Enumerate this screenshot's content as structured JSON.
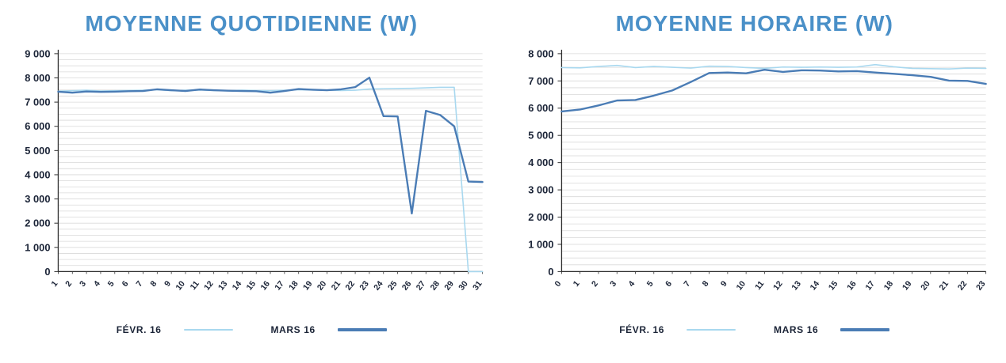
{
  "colors": {
    "title": "#4a90c8",
    "grid": "#d9d9d9",
    "axis": "#2f2f2f",
    "label": "#1b2437"
  },
  "chart_data": [
    {
      "type": "line",
      "title": "MOYENNE QUOTIDIENNE (W)",
      "xlabel": "",
      "ylabel": "",
      "ylim": [
        0,
        9000
      ],
      "ytick_step": 1000,
      "grid_step": 250,
      "grid": true,
      "legend_position": "bottom",
      "x": [
        "1",
        "2",
        "3",
        "4",
        "5",
        "6",
        "7",
        "8",
        "9",
        "10",
        "11",
        "12",
        "13",
        "14",
        "15",
        "16",
        "17",
        "18",
        "19",
        "20",
        "21",
        "22",
        "23",
        "24",
        "25",
        "26",
        "27",
        "28",
        "29",
        "30",
        "31"
      ],
      "series": [
        {
          "name": "FÉVR. 16",
          "color": "#a8d8ef",
          "values": [
            7450,
            7470,
            7490,
            7460,
            7470,
            7480,
            7490,
            7510,
            7470,
            7490,
            7500,
            7480,
            7470,
            7490,
            7480,
            7470,
            7490,
            7510,
            7500,
            7490,
            7480,
            7490,
            7540,
            7550,
            7560,
            7570,
            7590,
            7610,
            7610,
            0,
            0
          ]
        },
        {
          "name": "MARS 16",
          "color": "#4a7cb5",
          "values": [
            7430,
            7390,
            7440,
            7420,
            7430,
            7450,
            7460,
            7530,
            7490,
            7460,
            7520,
            7490,
            7470,
            7460,
            7450,
            7390,
            7460,
            7540,
            7510,
            7490,
            7530,
            7620,
            8010,
            6420,
            6410,
            2400,
            6640,
            6470,
            6000,
            3720,
            3700
          ]
        }
      ]
    },
    {
      "type": "line",
      "title": "MOYENNE HORAIRE (W)",
      "xlabel": "",
      "ylabel": "",
      "ylim": [
        0,
        8000
      ],
      "ytick_step": 1000,
      "grid_step": 250,
      "grid": true,
      "legend_position": "bottom",
      "x": [
        "0",
        "1",
        "2",
        "3",
        "4",
        "5",
        "6",
        "7",
        "8",
        "9",
        "10",
        "11",
        "12",
        "13",
        "14",
        "15",
        "16",
        "17",
        "18",
        "19",
        "20",
        "21",
        "22",
        "23"
      ],
      "series": [
        {
          "name": "FÉVR. 16",
          "color": "#a8d8ef",
          "values": [
            7490,
            7480,
            7530,
            7570,
            7490,
            7530,
            7500,
            7470,
            7540,
            7530,
            7490,
            7460,
            7510,
            7500,
            7510,
            7500,
            7510,
            7600,
            7520,
            7460,
            7450,
            7440,
            7470,
            7460
          ]
        },
        {
          "name": "MARS 16",
          "color": "#4a7cb5",
          "values": [
            5880,
            5950,
            6100,
            6280,
            6300,
            6460,
            6650,
            6960,
            7290,
            7310,
            7280,
            7410,
            7330,
            7390,
            7380,
            7350,
            7360,
            7310,
            7260,
            7210,
            7150,
            7010,
            7000,
            6890
          ]
        }
      ]
    }
  ]
}
